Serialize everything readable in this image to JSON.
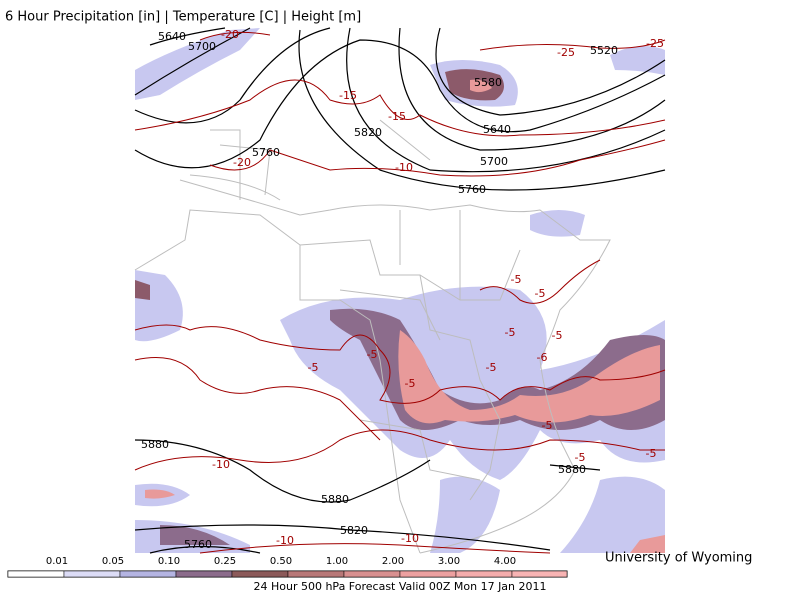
{
  "header": {
    "title": "6 Hour Precipitation [in] | Temperature [C] | Height [m]"
  },
  "credit": "University of Wyoming",
  "legend": {
    "labels": [
      "0.01",
      "0.05",
      "0.10",
      "0.25",
      "0.50",
      "1.00",
      "2.00",
      "3.00",
      "4.00"
    ]
  },
  "footer": "24 Hour 500 hPa Forecast Valid 00Z Mon 17 Jan 2011",
  "height_labels": [
    "5640",
    "5700",
    "5580",
    "5520",
    "5640",
    "5820",
    "5760",
    "5700",
    "5760",
    "5880",
    "5880",
    "5880",
    "5820",
    "5760"
  ],
  "temperature_labels": [
    "-20",
    "-25",
    "-25",
    "-15",
    "-15",
    "-20",
    "-10",
    "-5",
    "-5",
    "-5",
    "-5",
    "-5",
    "-6",
    "-5",
    "-5",
    "-5",
    "-5",
    "-10",
    "-10",
    "-10",
    "-5",
    "-5"
  ]
}
